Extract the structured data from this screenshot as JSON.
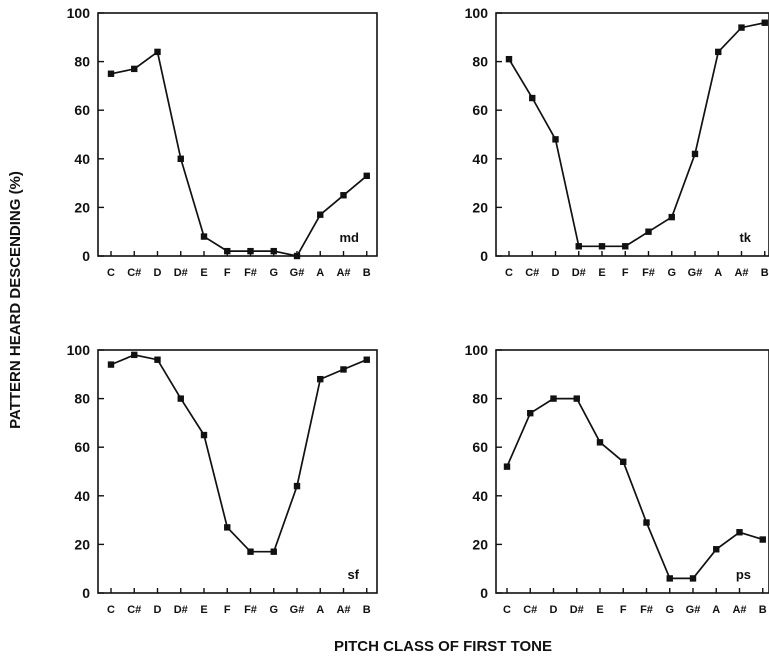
{
  "figure": {
    "ylabel": "PATTERN HEARD DESCENDING (%)",
    "xlabel": "PITCH CLASS OF FIRST TONE"
  },
  "chart_data": [
    {
      "type": "line",
      "panel": "top-left",
      "annotation": "md",
      "categories": [
        "C",
        "C#",
        "D",
        "D#",
        "E",
        "F",
        "F#",
        "G",
        "G#",
        "A",
        "A#",
        "B"
      ],
      "series": [
        {
          "values": [
            75,
            77,
            84,
            40,
            8,
            2,
            2,
            2,
            0,
            17,
            25,
            33
          ]
        }
      ],
      "yticks": [
        "0",
        "20",
        "40",
        "60",
        "80",
        "100"
      ],
      "ylim": [
        0,
        100
      ],
      "grid": false
    },
    {
      "type": "line",
      "panel": "top-right",
      "annotation": "tk",
      "categories": [
        "C",
        "C#",
        "D",
        "D#",
        "E",
        "F",
        "F#",
        "G",
        "G#",
        "A",
        "A#",
        "B"
      ],
      "series": [
        {
          "values": [
            81,
            65,
            48,
            4,
            4,
            4,
            10,
            16,
            42,
            84,
            94,
            96
          ]
        }
      ],
      "yticks": [
        "0",
        "20",
        "40",
        "60",
        "80",
        "100"
      ],
      "ylim": [
        0,
        100
      ],
      "grid": false
    },
    {
      "type": "line",
      "panel": "bottom-left",
      "annotation": "sf",
      "categories": [
        "C",
        "C#",
        "D",
        "D#",
        "E",
        "F",
        "F#",
        "G",
        "G#",
        "A",
        "A#",
        "B"
      ],
      "series": [
        {
          "values": [
            94,
            98,
            96,
            80,
            65,
            27,
            17,
            17,
            44,
            88,
            92,
            96
          ]
        }
      ],
      "yticks": [
        "0",
        "20",
        "40",
        "60",
        "80",
        "100"
      ],
      "ylim": [
        0,
        100
      ],
      "grid": false
    },
    {
      "type": "line",
      "panel": "bottom-right",
      "annotation": "ps",
      "categories": [
        "C",
        "C#",
        "D",
        "D#",
        "E",
        "F",
        "F#",
        "G",
        "G#",
        "A",
        "A#",
        "B"
      ],
      "series": [
        {
          "values": [
            52,
            74,
            80,
            80,
            62,
            54,
            29,
            6,
            6,
            18,
            25,
            22
          ]
        }
      ],
      "yticks": [
        "0",
        "20",
        "40",
        "60",
        "80",
        "100"
      ],
      "ylim": [
        0,
        100
      ],
      "grid": false
    }
  ]
}
